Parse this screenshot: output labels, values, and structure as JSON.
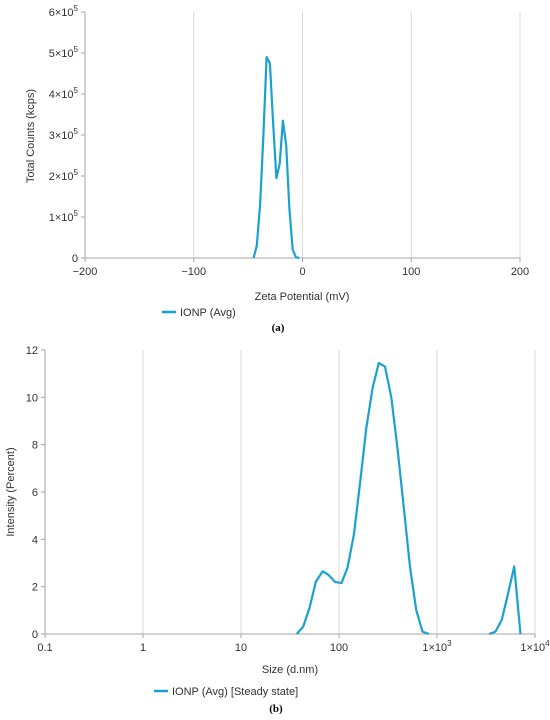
{
  "chart_data": [
    {
      "type": "line",
      "panel_label": "(a)",
      "xlabel": "Zeta Potential (mV)",
      "ylabel": "Total Counts (kcps)",
      "xlim": [
        -200,
        200
      ],
      "ylim": [
        0,
        600000
      ],
      "x_ticks": [
        {
          "value": -200,
          "label": "−200"
        },
        {
          "value": -100,
          "label": "−100"
        },
        {
          "value": 0,
          "label": "0"
        },
        {
          "value": 100,
          "label": "100"
        },
        {
          "value": 200,
          "label": "200"
        }
      ],
      "y_ticks": [
        {
          "value": 0,
          "base": "0",
          "exp": ""
        },
        {
          "value": 100000,
          "base": "1×10",
          "exp": "5"
        },
        {
          "value": 200000,
          "base": "2×10",
          "exp": "5"
        },
        {
          "value": 300000,
          "base": "3×10",
          "exp": "5"
        },
        {
          "value": 400000,
          "base": "4×10",
          "exp": "5"
        },
        {
          "value": 500000,
          "base": "5×10",
          "exp": "5"
        },
        {
          "value": 600000,
          "base": "6×10",
          "exp": "5"
        }
      ],
      "grid": "vertical",
      "legend_position": "bottom-left",
      "color": "#1BA1CF",
      "series": [
        {
          "name": "IONP (Avg)",
          "x": [
            -45,
            -42,
            -39,
            -36,
            -33,
            -30,
            -27,
            -24,
            -21,
            -18,
            -15,
            -12,
            -9,
            -6,
            -3
          ],
          "y": [
            0,
            30000,
            130000,
            300000,
            490000,
            475000,
            330000,
            195000,
            230000,
            335000,
            275000,
            120000,
            20000,
            2000,
            0
          ]
        }
      ]
    },
    {
      "type": "line",
      "panel_label": "(b)",
      "xlabel": "Size (d.nm)",
      "ylabel": "Intensity (Percent)",
      "x_scale": "log",
      "xlim": [
        0.1,
        10000
      ],
      "ylim": [
        0,
        12
      ],
      "x_ticks": [
        {
          "value": 0.1,
          "base": "0.1",
          "exp": ""
        },
        {
          "value": 1,
          "base": "1",
          "exp": ""
        },
        {
          "value": 10,
          "base": "10",
          "exp": ""
        },
        {
          "value": 100,
          "base": "100",
          "exp": ""
        },
        {
          "value": 1000,
          "base": "1×10",
          "exp": "3"
        },
        {
          "value": 10000,
          "base": "1×10",
          "exp": "4"
        }
      ],
      "y_ticks": [
        {
          "value": 0,
          "label": "0"
        },
        {
          "value": 2,
          "label": "2"
        },
        {
          "value": 4,
          "label": "4"
        },
        {
          "value": 6,
          "label": "6"
        },
        {
          "value": 8,
          "label": "8"
        },
        {
          "value": 10,
          "label": "10"
        },
        {
          "value": 12,
          "label": "12"
        }
      ],
      "grid": "vertical",
      "legend_position": "bottom-left",
      "color": "#1BA1CF",
      "series": [
        {
          "name": "IONP (Avg) [Steady state]",
          "x": [
            37,
            43,
            50,
            58,
            68,
            78,
            91,
            106,
            122,
            142,
            164,
            190,
            220,
            255,
            295,
            342,
            396,
            459,
            531,
            615,
            712,
            825
          ],
          "y": [
            0,
            0.3,
            1.1,
            2.2,
            2.65,
            2.5,
            2.2,
            2.15,
            2.8,
            4.2,
            6.4,
            8.7,
            10.4,
            11.45,
            11.3,
            10.0,
            7.8,
            5.3,
            2.8,
            1.0,
            0.1,
            0
          ]
        },
        {
          "name": "",
          "x": [
            3400,
            3950,
            4580,
            5300,
            6140,
            7120
          ],
          "y": [
            0,
            0.1,
            0.6,
            1.7,
            2.85,
            0
          ]
        }
      ]
    }
  ]
}
